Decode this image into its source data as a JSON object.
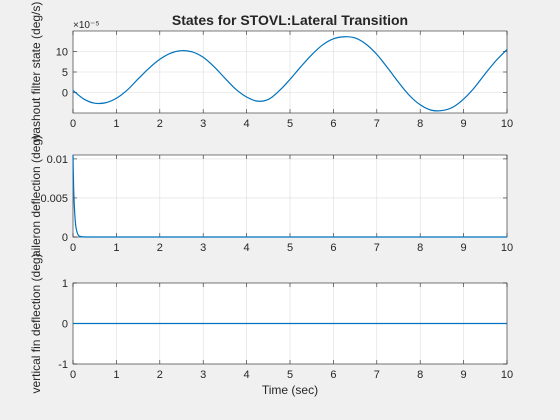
{
  "figure": {
    "background": "#f0f0f0",
    "line_color": "#0072bd",
    "axes_color": "#262626",
    "grid_color": "#dcdcdc"
  },
  "chart_data": [
    {
      "type": "line",
      "title": "States for STOVL:Lateral Transition",
      "ylabel": "washout filter state (deg/s)",
      "xlabel": "",
      "xlim": [
        0,
        10
      ],
      "ylim": [
        -5,
        15
      ],
      "exponent_label": "×10⁻⁵",
      "grid": true,
      "xticks": [
        0,
        1,
        2,
        3,
        4,
        5,
        6,
        7,
        8,
        9,
        10
      ],
      "yticks": [
        0,
        5,
        10
      ],
      "series": [
        {
          "x": [
            0,
            0.25,
            0.5,
            0.75,
            1,
            1.25,
            1.5,
            1.75,
            2,
            2.25,
            2.5,
            2.75,
            3,
            3.25,
            3.5,
            3.75,
            4,
            4.25,
            4.5,
            4.75,
            5,
            5.25,
            5.5,
            5.75,
            6,
            6.25,
            6.5,
            6.75,
            7,
            7.25,
            7.5,
            7.75,
            8,
            8.25,
            8.5,
            8.75,
            9,
            9.25,
            9.5,
            9.75,
            10
          ],
          "values": [
            0.5,
            -1.6,
            -2.6,
            -2.5,
            -1.4,
            0.6,
            3.3,
            5.9,
            8.1,
            9.6,
            10.2,
            9.9,
            8.6,
            6.3,
            3.5,
            0.8,
            -1.1,
            -2.1,
            -1.7,
            0.4,
            3.2,
            6.3,
            9.2,
            11.6,
            13.1,
            13.6,
            13.3,
            11.8,
            9.3,
            6.0,
            2.5,
            -0.7,
            -3.0,
            -4.3,
            -4.4,
            -3.6,
            -1.6,
            1.2,
            4.6,
            7.8,
            10.5
          ]
        }
      ]
    },
    {
      "type": "line",
      "title": "",
      "ylabel": "aileron deflection (deg)",
      "xlabel": "",
      "xlim": [
        0,
        10
      ],
      "ylim": [
        0,
        0.0105
      ],
      "grid": true,
      "xticks": [
        0,
        1,
        2,
        3,
        4,
        5,
        6,
        7,
        8,
        9,
        10
      ],
      "yticks": [
        0,
        0.005,
        0.01
      ],
      "ytick_labels": [
        "0",
        "0.005",
        "0.01"
      ],
      "series": [
        {
          "x": [
            0,
            0.01,
            0.02,
            0.04,
            0.06,
            0.08,
            0.1,
            0.12,
            0.15,
            0.2,
            0.3,
            0.5,
            1,
            2,
            3,
            4,
            5,
            6,
            7,
            8,
            9,
            10
          ],
          "values": [
            0.0105,
            0.0075,
            0.0054,
            0.003,
            0.0016,
            0.0009,
            0.0005,
            0.00025,
            0.0001,
            3e-05,
            0,
            0,
            0,
            0,
            0,
            0,
            0,
            0,
            0,
            0,
            0,
            0
          ]
        }
      ]
    },
    {
      "type": "line",
      "title": "",
      "ylabel": "vertical fin deflection (deg)",
      "xlabel": "Time (sec)",
      "xlim": [
        0,
        10
      ],
      "ylim": [
        -1,
        1
      ],
      "grid": true,
      "xticks": [
        0,
        1,
        2,
        3,
        4,
        5,
        6,
        7,
        8,
        9,
        10
      ],
      "yticks": [
        -1,
        0,
        1
      ],
      "series": [
        {
          "x": [
            0,
            10
          ],
          "values": [
            0,
            0
          ]
        }
      ]
    }
  ]
}
